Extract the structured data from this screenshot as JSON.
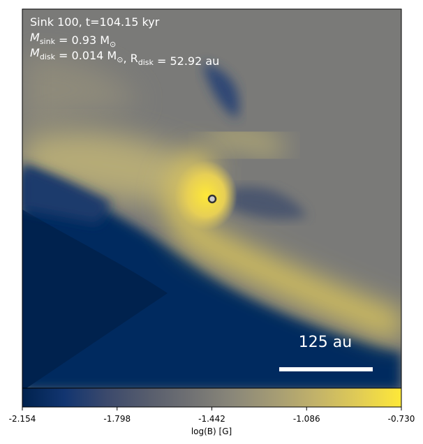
{
  "chart_data": {
    "type": "image",
    "annotations": [
      [
        {
          "text": "Sink 100, t=104.15 kyr"
        }
      ],
      [
        {
          "text": "M"
        },
        {
          "sub": "sink"
        },
        {
          "text": " = 0.93 M"
        },
        {
          "sub": "⊙"
        }
      ],
      [
        {
          "text": "M"
        },
        {
          "sub": "disk"
        },
        {
          "text": " = 0.014 M"
        },
        {
          "sub": "⊙"
        },
        {
          "text": ", R"
        },
        {
          "sub": "disk"
        },
        {
          "text": " = 52.92 au"
        }
      ]
    ],
    "scale_bar": "125 au",
    "colorbar": {
      "label": "log(B) [G]",
      "clim": [
        -2.154,
        -0.73
      ],
      "colormap": "cividis",
      "colors": [
        "#00224e",
        "#123570",
        "#3b496c",
        "#575d6d",
        "#707173",
        "#8a8779",
        "#a59c74",
        "#c3b369",
        "#e1cc55",
        "#fee838"
      ],
      "ticks": [
        -2.154,
        -1.798,
        -1.442,
        -1.086,
        {
          "value": -0.73,
          "label": "-0.730"
        }
      ]
    }
  }
}
